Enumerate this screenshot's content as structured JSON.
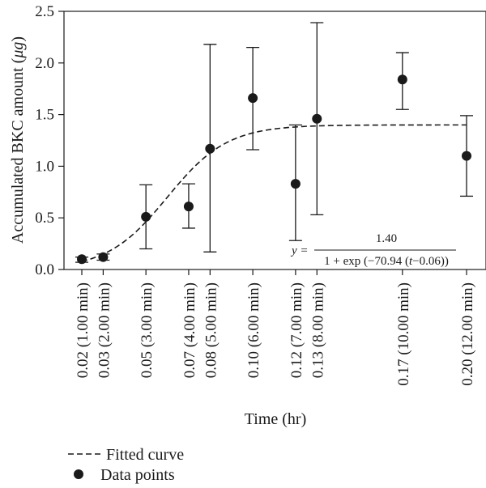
{
  "chart_data": {
    "type": "scatter",
    "xlabel": "Time (hr)",
    "ylabel": "Accumulated BKC amount (μg)",
    "ylabel_main": "Accumulated BKC amount (",
    "ylabel_unit": "μg",
    "ylabel_close": ")",
    "ylim": [
      0,
      2.5
    ],
    "xlim": [
      0.01,
      0.21
    ],
    "y_ticks": [
      {
        "value": 0.0,
        "label": "0.0"
      },
      {
        "value": 0.5,
        "label": "0.5"
      },
      {
        "value": 1.0,
        "label": "1.0"
      },
      {
        "value": 1.5,
        "label": "1.5"
      },
      {
        "value": 2.0,
        "label": "2.0"
      },
      {
        "value": 2.5,
        "label": "2.5"
      }
    ],
    "x_ticks": [
      {
        "value": 0.02,
        "label": "0.02 (1.00 min)"
      },
      {
        "value": 0.03,
        "label": "0.03 (2.00 min)"
      },
      {
        "value": 0.05,
        "label": "0.05 (3.00 min)"
      },
      {
        "value": 0.07,
        "label": "0.07 (4.00 min)"
      },
      {
        "value": 0.08,
        "label": "0.08 (5.00 min)"
      },
      {
        "value": 0.1,
        "label": "0.10 (6.00 min)"
      },
      {
        "value": 0.12,
        "label": "0.12 (7.00 min)"
      },
      {
        "value": 0.13,
        "label": "0.13 (8.00 min)"
      },
      {
        "value": 0.17,
        "label": "0.17 (10.00 min)"
      },
      {
        "value": 0.2,
        "label": "0.20 (12.00 min)"
      }
    ],
    "series": [
      {
        "name": "Data points",
        "points": [
          {
            "x": 0.02,
            "y": 0.1,
            "err_low": 0.07,
            "err_high": 0.12
          },
          {
            "x": 0.03,
            "y": 0.12,
            "err_low": 0.09,
            "err_high": 0.15
          },
          {
            "x": 0.05,
            "y": 0.51,
            "err_low": 0.2,
            "err_high": 0.82
          },
          {
            "x": 0.07,
            "y": 0.61,
            "err_low": 0.4,
            "err_high": 0.83
          },
          {
            "x": 0.08,
            "y": 1.17,
            "err_low": 0.17,
            "err_high": 2.18
          },
          {
            "x": 0.1,
            "y": 1.66,
            "err_low": 1.16,
            "err_high": 2.15
          },
          {
            "x": 0.12,
            "y": 0.83,
            "err_low": 0.28,
            "err_high": 1.4
          },
          {
            "x": 0.13,
            "y": 1.46,
            "err_low": 0.53,
            "err_high": 2.39
          },
          {
            "x": 0.17,
            "y": 1.84,
            "err_low": 1.55,
            "err_high": 2.1
          },
          {
            "x": 0.2,
            "y": 1.1,
            "err_low": 0.71,
            "err_high": 1.49
          }
        ]
      },
      {
        "name": "Fitted curve",
        "model": {
          "A": 1.4,
          "k": 70.94,
          "t0": 0.06
        },
        "x_range": [
          0.02,
          0.2
        ]
      }
    ],
    "equation": {
      "lhs": "y =",
      "numerator": "1.40",
      "denominator": "1 + exp (−70.94 (t−0.06))",
      "denominator_parts": [
        "1 + exp (−70.94 (",
        "t",
        "−0.06))"
      ]
    },
    "legend": {
      "placement": "bottom-left",
      "entries": [
        {
          "label": "Fitted curve",
          "marker": "dashed-line"
        },
        {
          "label": "Data points",
          "marker": "filled-circle"
        }
      ]
    },
    "grid": false
  }
}
